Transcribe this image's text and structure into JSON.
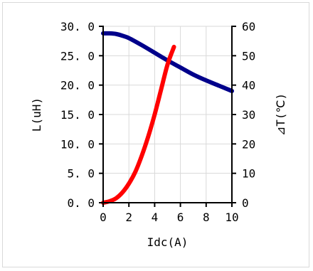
{
  "chart_data": {
    "type": "line",
    "title": "",
    "xlabel": "Idc(A)",
    "ylabel_left": "L(uH)",
    "ylabel_right": "⊿T(℃)",
    "xlim": [
      0,
      10
    ],
    "ylim_left": [
      0,
      30
    ],
    "ylim_right": [
      0,
      60
    ],
    "grid": true,
    "x_ticks": [
      "0",
      "2",
      "4",
      "6",
      "8",
      "10"
    ],
    "y_left_ticks": [
      "0.0",
      "5.0",
      "10.0",
      "15.0",
      "20.0",
      "25.0",
      "30.0"
    ],
    "y_right_ticks": [
      "0",
      "10",
      "20",
      "30",
      "40",
      "50",
      "60"
    ],
    "series": [
      {
        "axis": "left",
        "color": "#00008b",
        "x": [
          0,
          0.5,
          1,
          1.5,
          2,
          3,
          4,
          5,
          6,
          7,
          8,
          9,
          10
        ],
        "y": [
          28.8,
          28.8,
          28.7,
          28.4,
          28.0,
          26.8,
          25.5,
          24.2,
          23.0,
          21.8,
          20.8,
          19.9,
          19.0
        ]
      },
      {
        "axis": "right",
        "color": "#ff0000",
        "x": [
          0,
          0.5,
          1,
          1.5,
          2,
          2.5,
          3,
          3.5,
          4,
          4.5,
          5,
          5.5
        ],
        "y": [
          0,
          0.5,
          1.5,
          3.5,
          6.5,
          10.5,
          16,
          22.5,
          30,
          38.5,
          47,
          53
        ]
      }
    ]
  }
}
